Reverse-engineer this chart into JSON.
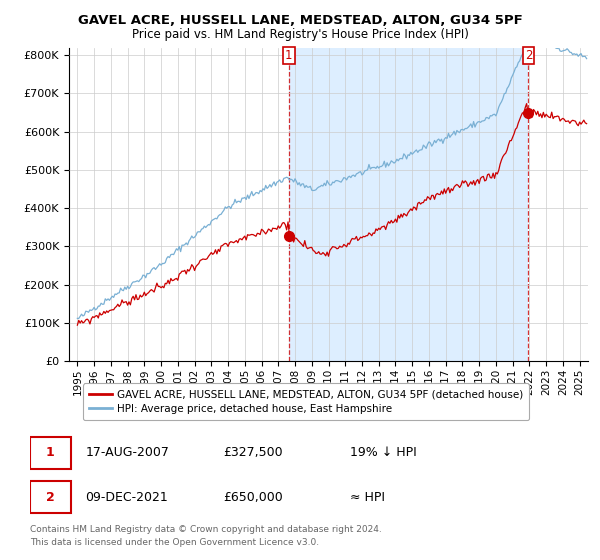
{
  "title": "GAVEL ACRE, HUSSELL LANE, MEDSTEAD, ALTON, GU34 5PF",
  "subtitle": "Price paid vs. HM Land Registry's House Price Index (HPI)",
  "legend_label_red": "GAVEL ACRE, HUSSELL LANE, MEDSTEAD, ALTON, GU34 5PF (detached house)",
  "legend_label_blue": "HPI: Average price, detached house, East Hampshire",
  "point1_date": "17-AUG-2007",
  "point1_price": "£327,500",
  "point1_hpi": "19% ↓ HPI",
  "point2_date": "09-DEC-2021",
  "point2_price": "£650,000",
  "point2_hpi": "≈ HPI",
  "footer": "Contains HM Land Registry data © Crown copyright and database right 2024.\nThis data is licensed under the Open Government Licence v3.0.",
  "red_color": "#cc0000",
  "blue_color": "#7ab0d4",
  "shade_color": "#ddeeff",
  "background_color": "#ffffff",
  "grid_color": "#cccccc",
  "point1_x": 2007.63,
  "point1_y": 327500,
  "point2_x": 2021.94,
  "point2_y": 650000,
  "ylim": [
    0,
    820000
  ],
  "xlim_start": 1994.5,
  "xlim_end": 2025.5
}
